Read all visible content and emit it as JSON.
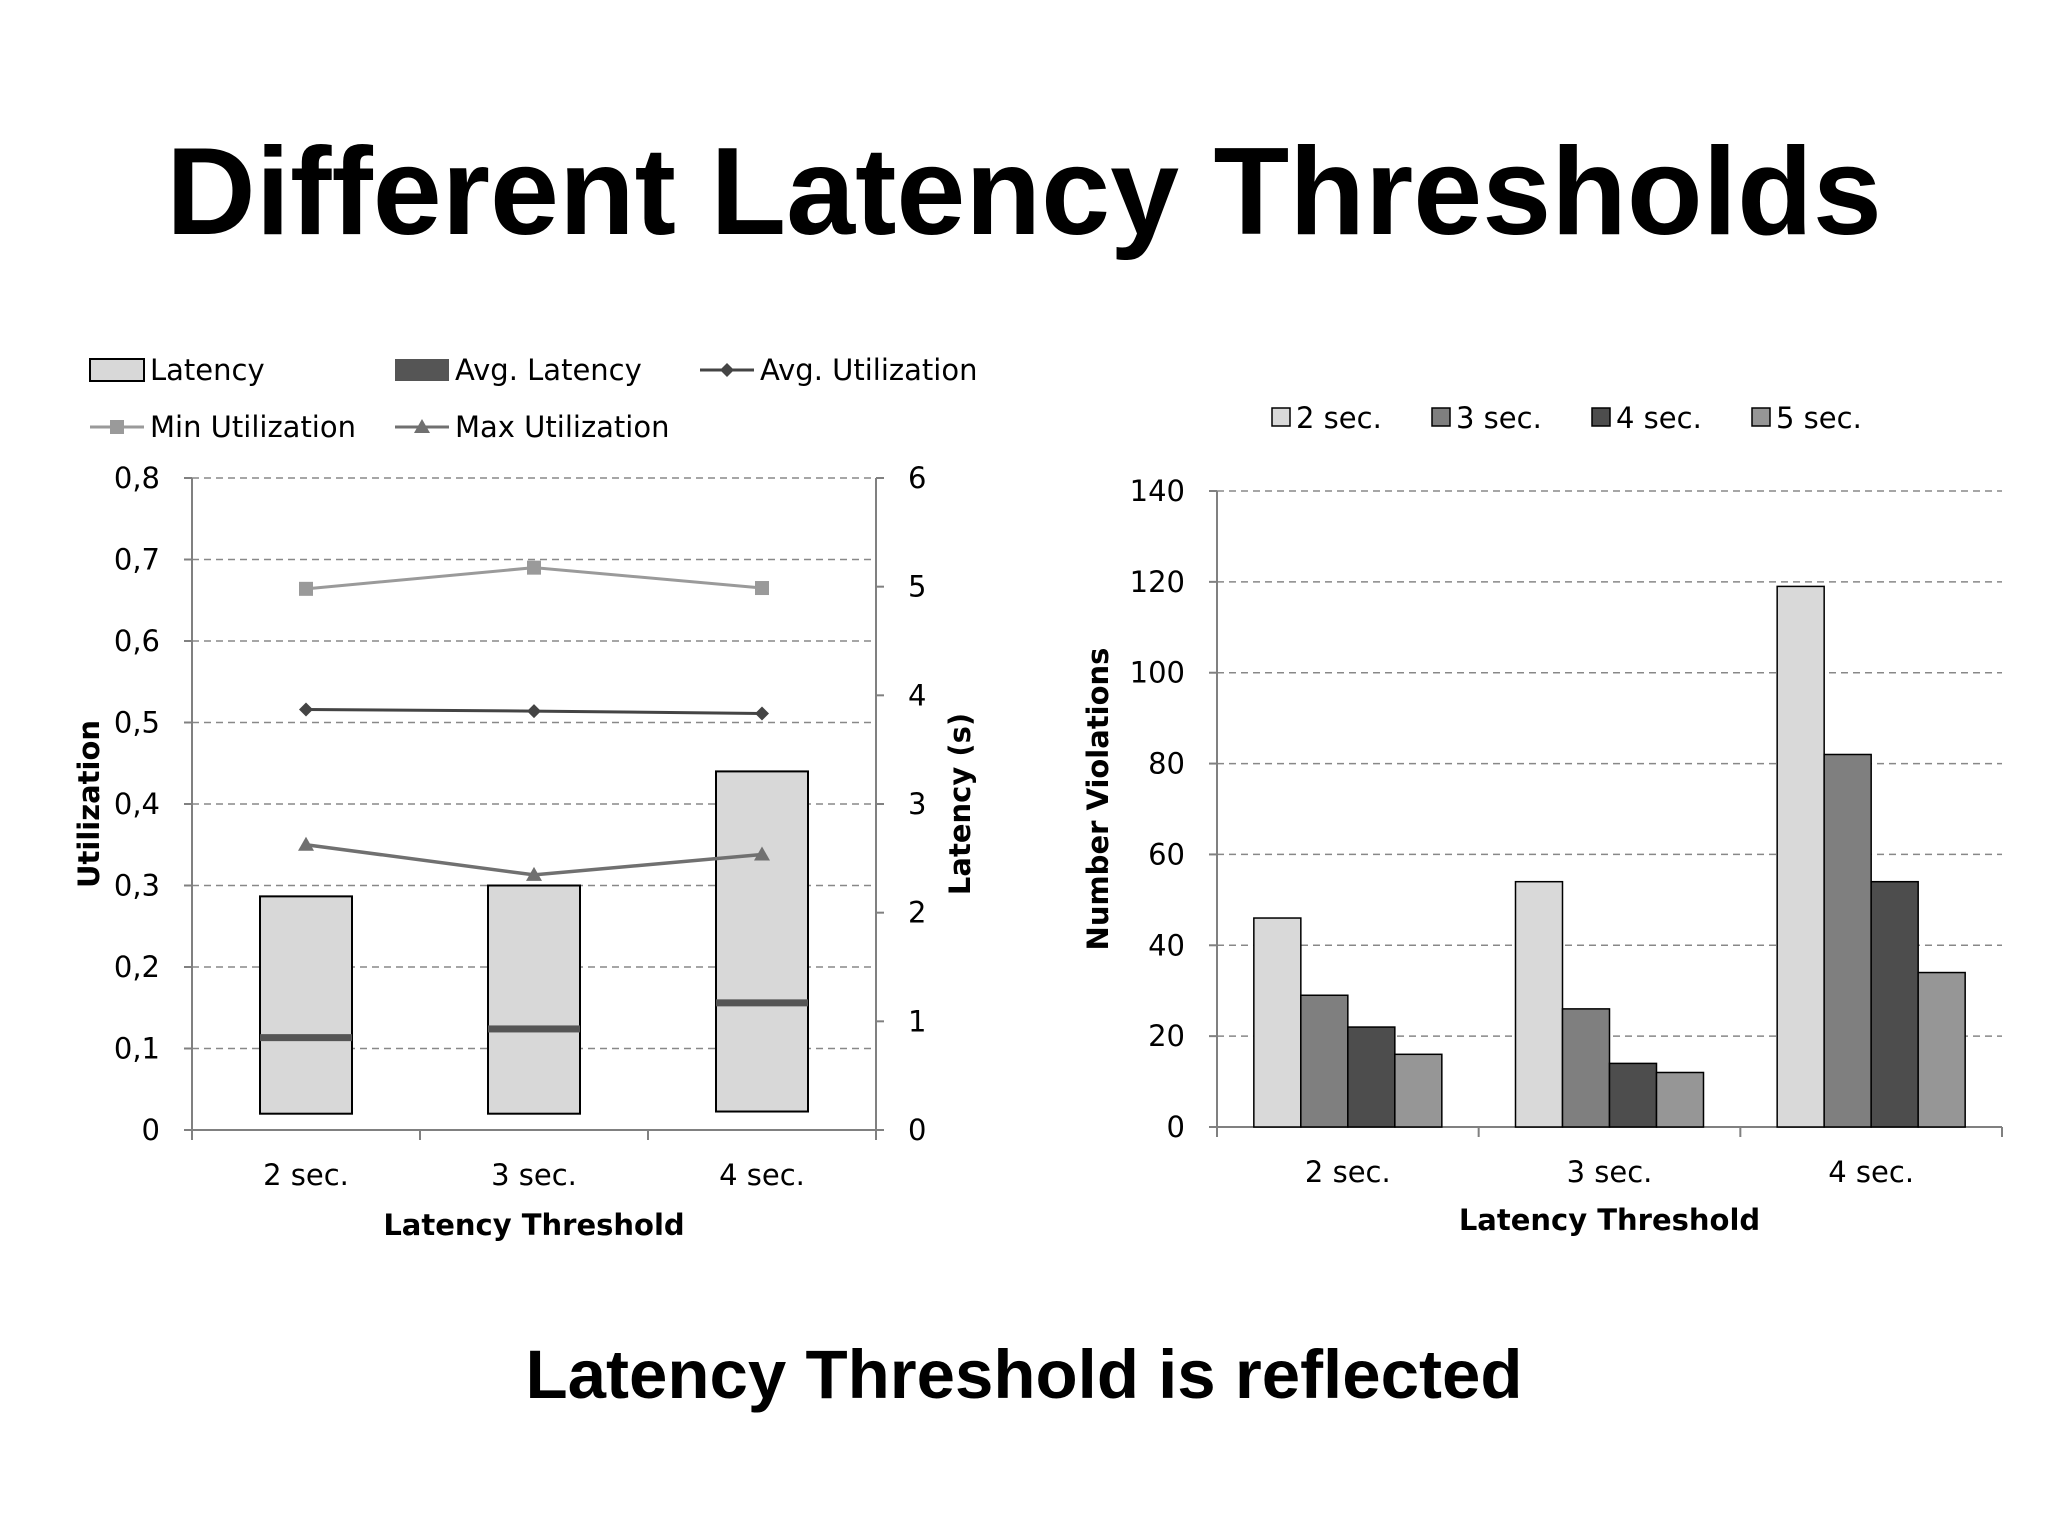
{
  "slide": {
    "title": "Different Latency Thresholds",
    "subtitle": "Latency Threshold is reflected"
  },
  "colors": {
    "latency_box_fill": "#d8d8d8",
    "avg_latency": "#555555",
    "avg_utilization": "#444444",
    "min_utilization": "#9a9a9a",
    "max_utilization": "#707070",
    "bar_2sec": "#d9d9d9",
    "bar_3sec": "#7f7f7f",
    "bar_4sec": "#4d4d4d",
    "bar_5sec": "#969696",
    "grid": "#888888",
    "axis": "#808080"
  },
  "chart_data": [
    {
      "type": "bar",
      "categories": [
        "2 sec.",
        "3 sec.",
        "4 sec."
      ],
      "xlabel": "Latency Threshold",
      "ylabel": "Utilization",
      "y2label": "Latency (s)",
      "ylim": [
        0,
        0.8
      ],
      "y2lim": [
        0,
        6
      ],
      "yticks": [
        "0",
        "0,1",
        "0,2",
        "0,3",
        "0,4",
        "0,5",
        "0,6",
        "0,7",
        "0,8"
      ],
      "y2ticks": [
        "0",
        "1",
        "2",
        "3",
        "4",
        "5",
        "6"
      ],
      "grid": true,
      "legend": [
        {
          "label": "Latency",
          "marker": "box"
        },
        {
          "label": "Avg. Latency",
          "marker": "thick-bar"
        },
        {
          "label": "Avg. Utilization",
          "marker": "diamond-line"
        },
        {
          "label": "Min Utilization",
          "marker": "square-line"
        },
        {
          "label": "Max Utilization",
          "marker": "triangle-line"
        }
      ],
      "latency_range": [
        {
          "category": "2 sec.",
          "low": 0.15,
          "high": 2.15
        },
        {
          "category": "3 sec.",
          "low": 0.15,
          "high": 2.25
        },
        {
          "category": "4 sec.",
          "low": 0.17,
          "high": 3.3
        }
      ],
      "avg_latency": [
        0.85,
        0.93,
        1.17
      ],
      "series": [
        {
          "name": "Avg. Utilization",
          "axis": "left",
          "values": [
            0.516,
            0.514,
            0.511
          ]
        },
        {
          "name": "Min Utilization",
          "axis": "left",
          "values": [
            0.664,
            0.69,
            0.665
          ]
        },
        {
          "name": "Max Utilization",
          "axis": "left",
          "values": [
            0.35,
            0.313,
            0.338
          ]
        }
      ]
    },
    {
      "type": "bar",
      "categories": [
        "2 sec.",
        "3 sec.",
        "4 sec."
      ],
      "xlabel": "Latency Threshold",
      "ylabel": "Number Violations",
      "ylim": [
        0,
        140
      ],
      "yticks": [
        "0",
        "20",
        "40",
        "60",
        "80",
        "100",
        "120",
        "140"
      ],
      "grid": true,
      "legend_position": "top",
      "series": [
        {
          "name": "2 sec.",
          "values": [
            46,
            54,
            119
          ]
        },
        {
          "name": "3 sec.",
          "values": [
            29,
            26,
            82
          ]
        },
        {
          "name": "4 sec.",
          "values": [
            22,
            14,
            54
          ]
        },
        {
          "name": "5 sec.",
          "values": [
            16,
            12,
            34
          ]
        }
      ]
    }
  ]
}
